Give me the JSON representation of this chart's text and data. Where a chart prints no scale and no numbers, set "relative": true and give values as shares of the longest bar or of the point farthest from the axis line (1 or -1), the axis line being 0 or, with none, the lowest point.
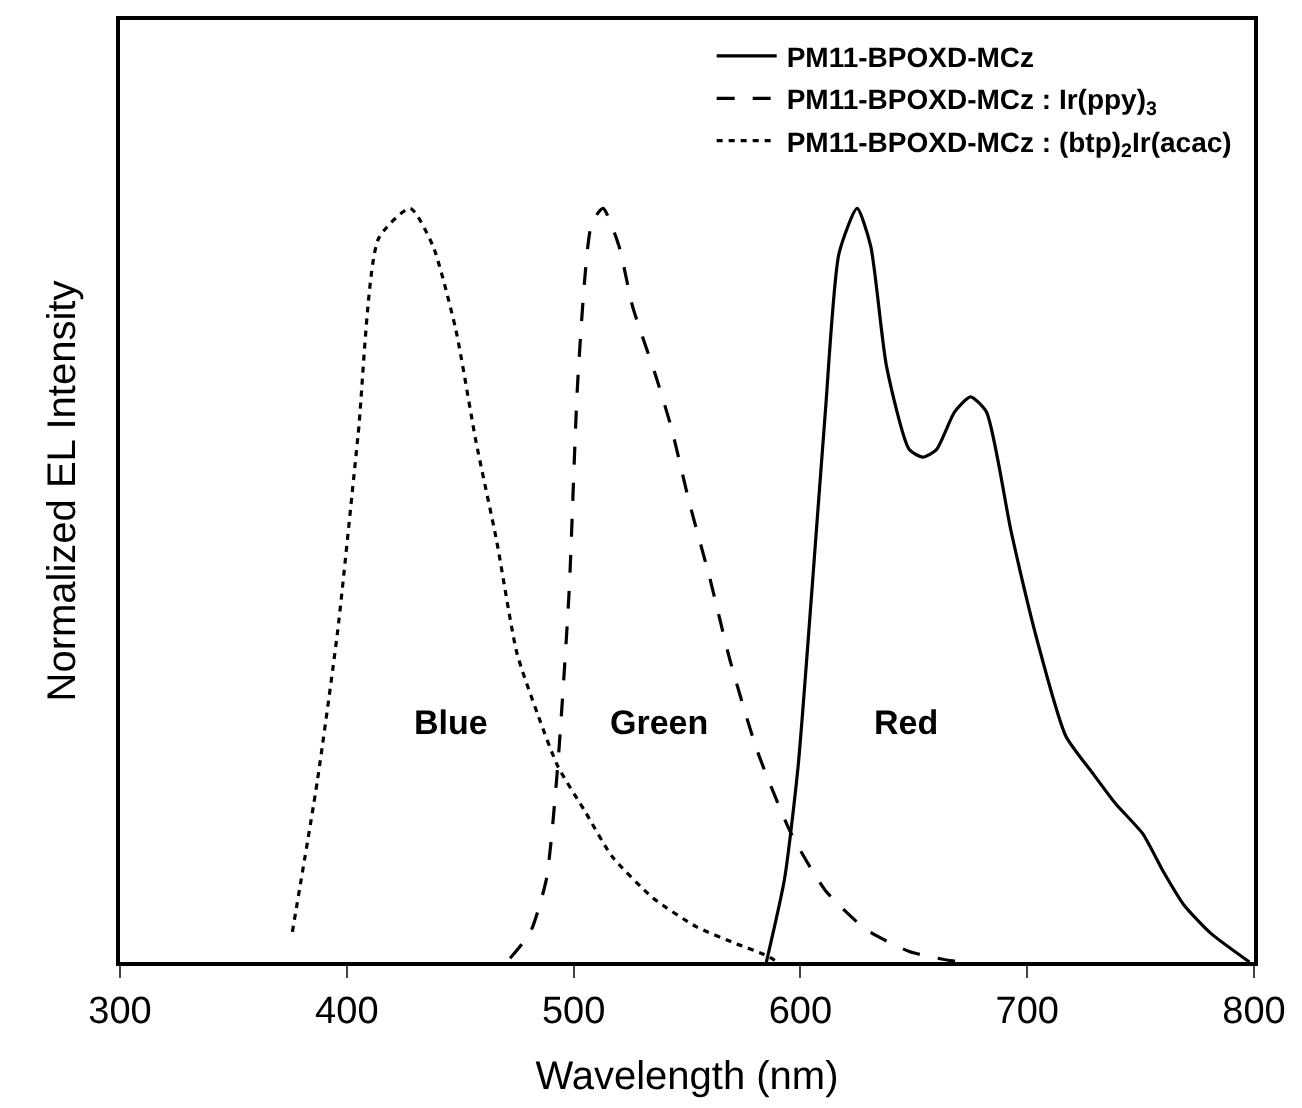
{
  "chart_data": {
    "type": "line",
    "xlabel": "Wavelength (nm)",
    "ylabel": "Normalized EL Intensity",
    "relative": true,
    "xlim": [
      300,
      800
    ],
    "xticks": [
      300,
      400,
      500,
      600,
      700,
      800
    ],
    "legend": "top right",
    "marker": "none",
    "series": [
      {
        "name": "PM11-BPOXD-MCz",
        "color": "#000000",
        "line_style": "solid",
        "x": [
          585,
          593,
          599,
          605,
          611,
          617,
          625,
          631,
          638,
          648,
          654,
          660,
          668,
          675,
          682,
          693,
          705,
          717,
          729,
          739,
          751,
          760,
          769,
          781,
          798
        ],
        "values": [
          0,
          0.11,
          0.26,
          0.49,
          0.73,
          0.94,
          1.0,
          0.95,
          0.79,
          0.68,
          0.67,
          0.68,
          0.73,
          0.75,
          0.73,
          0.57,
          0.42,
          0.3,
          0.25,
          0.21,
          0.17,
          0.12,
          0.076,
          0.038,
          0
        ]
      },
      {
        "name": "PM11-BPOXD-MCz : Ir(ppy)$_{3}$",
        "color": "#000000",
        "line_style": "dashed",
        "x": [
          472,
          481,
          488,
          493,
          498,
          502,
          508,
          513,
          520,
          526,
          536,
          543,
          551,
          560,
          569,
          581,
          596,
          611,
          629,
          648,
          666,
          675
        ],
        "values": [
          0.005,
          0.04,
          0.11,
          0.26,
          0.49,
          0.78,
          0.98,
          1.0,
          0.95,
          0.87,
          0.78,
          0.71,
          0.61,
          0.51,
          0.4,
          0.28,
          0.17,
          0.095,
          0.043,
          0.014,
          0.002,
          0
        ]
      },
      {
        "name": "PM11-BPOXD-MCz : (btp)$_{2}$Ir(acac)",
        "color": "#000000",
        "line_style": "dotted",
        "x": [
          376,
          387,
          396,
          405,
          414,
          428,
          438,
          448,
          457,
          466,
          475,
          484,
          493,
          505,
          517,
          535,
          554,
          572,
          584,
          590
        ],
        "values": [
          0.04,
          0.24,
          0.44,
          0.7,
          0.96,
          1.0,
          0.95,
          0.84,
          0.69,
          0.56,
          0.41,
          0.33,
          0.26,
          0.2,
          0.14,
          0.085,
          0.047,
          0.024,
          0.01,
          0
        ]
      }
    ],
    "annotations": [
      "Blue",
      "Green",
      "Red"
    ]
  }
}
